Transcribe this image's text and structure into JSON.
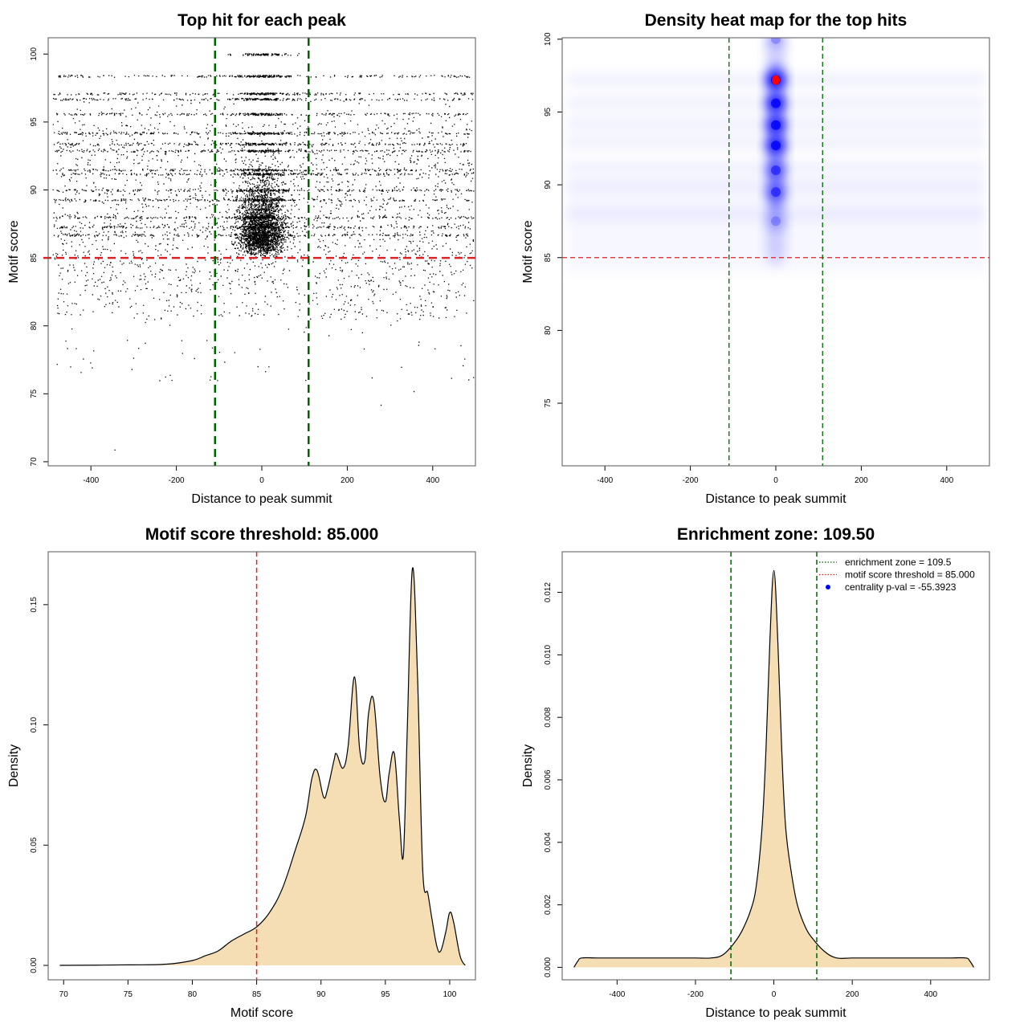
{
  "colors": {
    "threshold": "#dd2222",
    "zone": "#006400",
    "density_fill": "#f5deb3",
    "point": "#000000",
    "heat_low": "#ffffff",
    "heat_mid": "#0000ff",
    "heat_high": "#ff0000",
    "legend_dot": "#0000ff"
  },
  "chart_data": [
    {
      "id": "scatter",
      "type": "scatter",
      "title": "Top hit for each peak",
      "xlabel": "Distance to peak summit",
      "ylabel": "Motif score",
      "xlim": [
        -500,
        500
      ],
      "ylim": [
        69.7,
        101.2
      ],
      "xticks": [
        -400,
        -200,
        0,
        200,
        400
      ],
      "yticks": [
        70,
        75,
        80,
        85,
        90,
        95,
        100
      ],
      "threshold": 85.0,
      "zone": [
        -109.5,
        109.5
      ],
      "summary": {
        "score_levels_shown_as_rows": [
          100.0,
          98.4,
          97.1,
          96.7,
          95.6,
          94.2,
          93.4,
          92.9,
          91.5,
          91.2,
          90.0,
          89.3,
          88.0,
          87.3,
          86.7
        ],
        "sparse_low_points": [
          {
            "x": -345,
            "y": 70.9
          },
          {
            "x": 278,
            "y": 74.2
          },
          {
            "x": 355,
            "y": 75.2
          },
          {
            "x": -240,
            "y": 76.0
          },
          {
            "x": -480,
            "y": 77.2
          },
          {
            "x": 470,
            "y": 77.1
          }
        ]
      }
    },
    {
      "id": "heatmap",
      "type": "heatmap",
      "title": "Density heat map for the top hits",
      "xlabel": "Distance to peak summit",
      "ylabel": "Motif score",
      "xlim": [
        -500,
        500
      ],
      "ylim": [
        70.7,
        100.1
      ],
      "xticks": [
        -400,
        -200,
        0,
        200,
        400
      ],
      "yticks": [
        75,
        80,
        85,
        90,
        95,
        100
      ],
      "threshold": 85.0,
      "zone": [
        -109.5,
        109.5
      ],
      "hotspots": [
        {
          "x": 0,
          "y": 97.2,
          "level": "max"
        },
        {
          "x": 0,
          "y": 95.6,
          "level": "high"
        },
        {
          "x": 0,
          "y": 94.1,
          "level": "high"
        },
        {
          "x": 0,
          "y": 92.7,
          "level": "high"
        },
        {
          "x": 0,
          "y": 91.0,
          "level": "medium"
        },
        {
          "x": 0,
          "y": 89.5,
          "level": "medium"
        },
        {
          "x": 0,
          "y": 100.0,
          "level": "low"
        },
        {
          "x": 0,
          "y": 87.5,
          "level": "low"
        }
      ]
    },
    {
      "id": "score_density",
      "type": "area",
      "title": "Motif score threshold: 85.000",
      "xlabel": "Motif score",
      "ylabel": "Density",
      "xlim": [
        68.8,
        102.0
      ],
      "ylim": [
        -0.006,
        0.172
      ],
      "xticks": [
        70,
        75,
        80,
        85,
        90,
        95,
        100
      ],
      "yticks": [
        0.0,
        0.05,
        0.1,
        0.15
      ],
      "ytick_labels": [
        "0.00",
        "0.05",
        "0.10",
        "0.15"
      ],
      "threshold": 85.0,
      "x": [
        69.7,
        75,
        78,
        80,
        81,
        82,
        83,
        84,
        85,
        86,
        87,
        88,
        88.8,
        89.3,
        89.7,
        90.2,
        90.5,
        91.0,
        91.2,
        91.7,
        92.1,
        92.6,
        93.0,
        93.4,
        93.7,
        94.1,
        94.6,
        95.0,
        95.3,
        95.7,
        96.1,
        96.4,
        96.7,
        97.1,
        97.5,
        97.9,
        98.3,
        98.6,
        99.0,
        99.3,
        99.7,
        100.0,
        100.3,
        100.8,
        101.2
      ],
      "values": [
        0.0,
        0.0002,
        0.0005,
        0.002,
        0.004,
        0.006,
        0.01,
        0.013,
        0.016,
        0.022,
        0.032,
        0.048,
        0.062,
        0.078,
        0.081,
        0.07,
        0.073,
        0.085,
        0.088,
        0.082,
        0.091,
        0.12,
        0.09,
        0.085,
        0.105,
        0.11,
        0.078,
        0.068,
        0.08,
        0.088,
        0.06,
        0.046,
        0.098,
        0.165,
        0.12,
        0.04,
        0.03,
        0.02,
        0.008,
        0.006,
        0.014,
        0.022,
        0.018,
        0.004,
        0.0
      ]
    },
    {
      "id": "distance_density",
      "type": "area",
      "title": "Enrichment zone: 109.50",
      "xlabel": "Distance to peak summit",
      "ylabel": "Density",
      "xlim": [
        -540,
        550
      ],
      "ylim": [
        -0.0004,
        0.0133
      ],
      "xticks": [
        -400,
        -200,
        0,
        200,
        400
      ],
      "yticks": [
        0.0,
        0.002,
        0.004,
        0.006,
        0.008,
        0.01,
        0.012
      ],
      "ytick_labels": [
        "0.000",
        "0.002",
        "0.004",
        "0.006",
        "0.008",
        "0.010",
        "0.012"
      ],
      "zone": [
        -109.5,
        109.5
      ],
      "x": [
        -510,
        -500,
        -490,
        -450,
        -400,
        -350,
        -300,
        -250,
        -200,
        -160,
        -130,
        -100,
        -80,
        -60,
        -45,
        -30,
        -20,
        -10,
        0,
        10,
        20,
        30,
        45,
        60,
        80,
        100,
        130,
        160,
        200,
        250,
        300,
        350,
        400,
        450,
        490,
        500,
        510
      ],
      "values": [
        0.0,
        0.0002,
        0.0003,
        0.0003,
        0.0003,
        0.0003,
        0.0003,
        0.0003,
        0.0003,
        0.0003,
        0.0004,
        0.0008,
        0.0012,
        0.0018,
        0.0026,
        0.0045,
        0.007,
        0.0105,
        0.0127,
        0.0105,
        0.007,
        0.0045,
        0.003,
        0.002,
        0.0013,
        0.0009,
        0.0005,
        0.0003,
        0.0003,
        0.0003,
        0.0003,
        0.0003,
        0.0003,
        0.0003,
        0.0003,
        0.0002,
        0.0
      ],
      "legend": [
        {
          "label": "enrichment zone = 109.5",
          "style": "dotted-line",
          "color": "#006400"
        },
        {
          "label": "motif score threshold = 85.000",
          "style": "dotted-line",
          "color": "#dd2222"
        },
        {
          "label": "centrality p-val = -55.3923",
          "style": "dot",
          "color": "#0000ff"
        }
      ],
      "legend_position": "top-right"
    }
  ]
}
